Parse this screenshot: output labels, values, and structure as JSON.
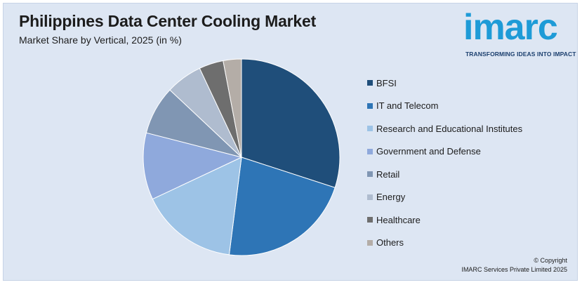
{
  "header": {
    "title": "Philippines Data Center Cooling Market",
    "subtitle": "Market Share by Vertical, 2025 (in %)"
  },
  "logo": {
    "wordmark": "imarc",
    "tagline": "TRANSFORMING IDEAS INTO IMPACT",
    "color": "#1e9bd7",
    "tagline_color": "#1b3f6e"
  },
  "chart_data": {
    "type": "pie",
    "title": "Philippines Data Center Cooling Market",
    "subtitle": "Market Share by Vertical, 2025 (in %)",
    "legend_position": "right",
    "slices": [
      {
        "label": "BFSI",
        "value": 30,
        "color": "#1f4e7a"
      },
      {
        "label": "IT and Telecom",
        "value": 22,
        "color": "#2e75b6"
      },
      {
        "label": "Research and Educational Institutes",
        "value": 16,
        "color": "#9dc3e6"
      },
      {
        "label": "Government and Defense",
        "value": 11,
        "color": "#8fa9dc"
      },
      {
        "label": "Retail",
        "value": 8,
        "color": "#8096b3"
      },
      {
        "label": "Energy",
        "value": 6,
        "color": "#afbccf"
      },
      {
        "label": "Healthcare",
        "value": 4,
        "color": "#6e6e6e"
      },
      {
        "label": "Others",
        "value": 3,
        "color": "#b4ada7"
      }
    ]
  },
  "footer": {
    "copyright_line1": "© Copyright",
    "copyright_line2": "IMARC Services Private Limited 2025"
  }
}
